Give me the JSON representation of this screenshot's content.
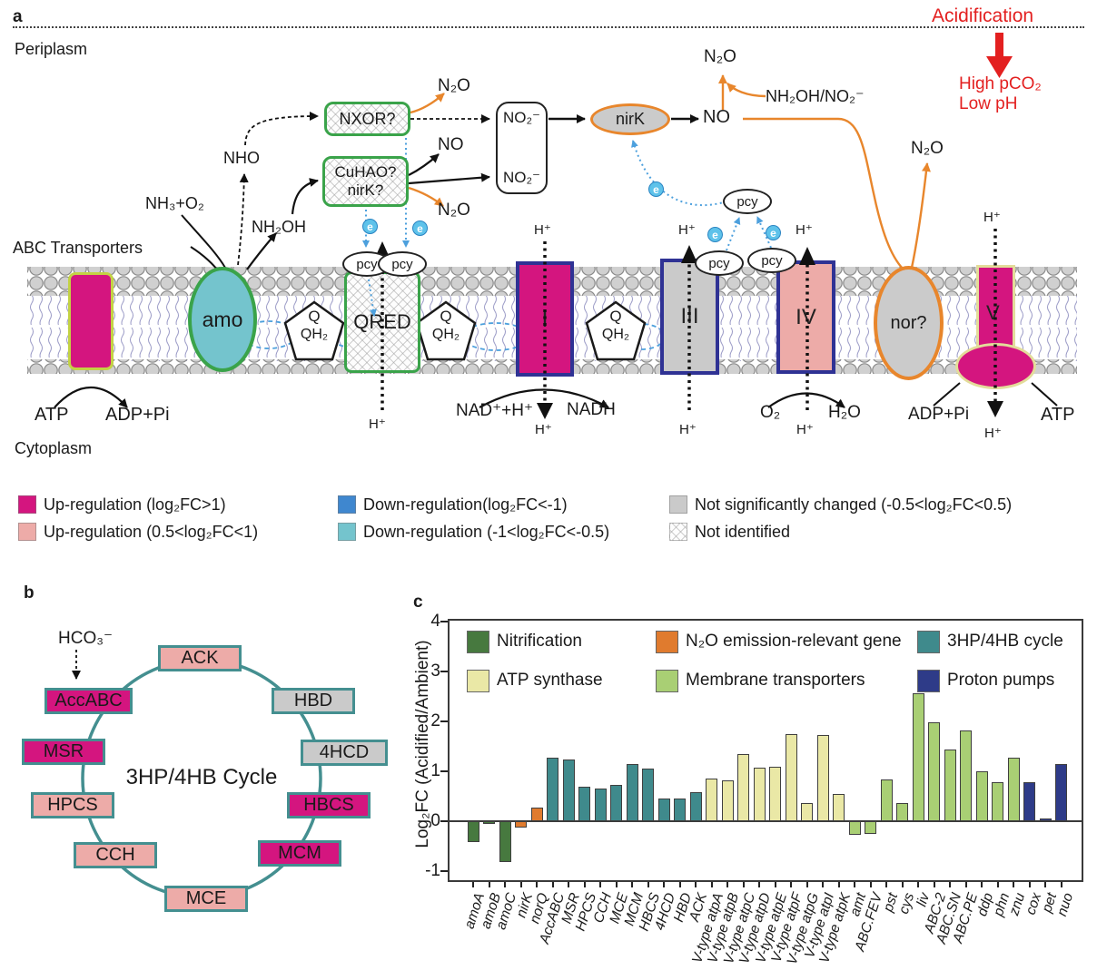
{
  "panel_a": {
    "label": "a",
    "periplasm": "Periplasm",
    "cytoplasm": "Cytoplasm",
    "abc_transporters": "ABC Transporters",
    "acidification": "Acidification",
    "high_pco2": "High pCO₂",
    "low_ph": "Low pH",
    "electron": "e",
    "molecules": {
      "nh3_o2": "NH₃+O₂",
      "nho": "NHO",
      "nh2oh": "NH₂OH",
      "n2o": "N₂O",
      "no": "NO",
      "no2": "NO₂⁻",
      "nh2oh_no2": "NH₂OH/NO₂⁻",
      "h_plus": "H⁺",
      "nad_h": "NAD⁺+H⁺",
      "nadh": "NADH",
      "o2": "O₂",
      "h2o": "H₂O",
      "atp": "ATP",
      "adp_pi": "ADP+Pi",
      "q": "Q",
      "qh2": "QH₂"
    },
    "proteins": {
      "amo": "amo",
      "qred": "QRED",
      "pcy": "pcy",
      "complex1": "I",
      "complex3": "III",
      "complex4": "IV",
      "nor": "nor?",
      "v": "V",
      "nirk": "nirK",
      "nxor": "NXOR?",
      "cuhao_line1": "CuHAO?",
      "cuhao_line2": "nirK?"
    },
    "legend": [
      {
        "swatch": "#d4157f",
        "label": "Up-regulation (log₂FC>1)"
      },
      {
        "swatch": "#edaba8",
        "label": "Up-regulation (0.5<log₂FC<1)"
      },
      {
        "swatch": "#3f87cf",
        "label": "Down-regulation(log₂FC<-1)"
      },
      {
        "swatch": "#74c4cd",
        "label": "Down-regulation (-1<log₂FC<-0.5)"
      },
      {
        "swatch": "#cacaca",
        "label": "Not significantly changed (-0.5<log₂FC<0.5)"
      },
      {
        "swatch": "hatch",
        "label": "Not identified"
      }
    ]
  },
  "panel_b": {
    "label": "b",
    "hco3": "HCO₃⁻",
    "center_label": "3HP/4HB Cycle",
    "nodes": [
      {
        "label": "ACK",
        "color": "#edaba8"
      },
      {
        "label": "HBD",
        "color": "#cacaca"
      },
      {
        "label": "4HCD",
        "color": "#cacaca"
      },
      {
        "label": "HBCS",
        "color": "#d4157f"
      },
      {
        "label": "MCM",
        "color": "#d4157f"
      },
      {
        "label": "MCE",
        "color": "#edaba8"
      },
      {
        "label": "CCH",
        "color": "#edaba8"
      },
      {
        "label": "HPCS",
        "color": "#edaba8"
      },
      {
        "label": "MSR",
        "color": "#d4157f"
      },
      {
        "label": "AccABC",
        "color": "#d4157f"
      }
    ]
  },
  "panel_c": {
    "label": "c"
  },
  "chart_data": {
    "type": "bar",
    "title": "",
    "xlabel": "",
    "ylabel": "Log₂FC (Acidified/Ambient)",
    "ylim": [
      -1.3,
      4.05
    ],
    "yticks": [
      4,
      3,
      2,
      1,
      0,
      -1
    ],
    "grid": false,
    "legend_position": "top-inside",
    "groups": {
      "nitrification": {
        "color": "#47793f",
        "label": "Nitrification"
      },
      "n2o": {
        "color": "#e07b2e",
        "label": "N₂O emission-relevant gene"
      },
      "hp4hb": {
        "color": "#3f8a8c",
        "label": "3HP/4HB cycle"
      },
      "atp": {
        "color": "#eae8a6",
        "label": "ATP synthase"
      },
      "membrane": {
        "color": "#a9cf74",
        "label": "Membrane transporters"
      },
      "proton": {
        "color": "#2e3b88",
        "label": "Proton pumps"
      }
    },
    "legend_order": [
      "nitrification",
      "n2o",
      "hp4hb",
      "atp",
      "membrane",
      "proton"
    ],
    "bars": [
      {
        "label": "amoA",
        "value": -0.42,
        "group": "nitrification"
      },
      {
        "label": "amoB",
        "value": -0.06,
        "group": "nitrification"
      },
      {
        "label": "amoC",
        "value": -0.82,
        "group": "nitrification"
      },
      {
        "label": "nirK",
        "value": -0.13,
        "group": "n2o"
      },
      {
        "label": "norQ",
        "value": 0.27,
        "group": "n2o"
      },
      {
        "label": "AccABC",
        "value": 1.27,
        "group": "hp4hb"
      },
      {
        "label": "MSR",
        "value": 1.23,
        "group": "hp4hb"
      },
      {
        "label": "HPCS",
        "value": 0.7,
        "group": "hp4hb"
      },
      {
        "label": "CCH",
        "value": 0.66,
        "group": "hp4hb"
      },
      {
        "label": "MCE",
        "value": 0.72,
        "group": "hp4hb"
      },
      {
        "label": "MCM",
        "value": 1.15,
        "group": "hp4hb"
      },
      {
        "label": "HBCS",
        "value": 1.05,
        "group": "hp4hb"
      },
      {
        "label": "4HCD",
        "value": 0.45,
        "group": "hp4hb"
      },
      {
        "label": "HBD",
        "value": 0.46,
        "group": "hp4hb"
      },
      {
        "label": "ACK",
        "value": 0.58,
        "group": "hp4hb"
      },
      {
        "label": "V-type atpA",
        "value": 0.86,
        "group": "atp"
      },
      {
        "label": "V-type atpB",
        "value": 0.82,
        "group": "atp"
      },
      {
        "label": "V-type atpC",
        "value": 1.35,
        "group": "atp"
      },
      {
        "label": "V-type atpD",
        "value": 1.08,
        "group": "atp"
      },
      {
        "label": "V-type atpE",
        "value": 1.09,
        "group": "atp"
      },
      {
        "label": "V-type atpF",
        "value": 1.75,
        "group": "atp"
      },
      {
        "label": "V-type atpG",
        "value": 0.37,
        "group": "atp"
      },
      {
        "label": "V-type atpI",
        "value": 1.73,
        "group": "atp"
      },
      {
        "label": "V-type atpK",
        "value": 0.54,
        "group": "atp"
      },
      {
        "label": "amt",
        "value": -0.28,
        "group": "membrane"
      },
      {
        "label": "ABC.FEV",
        "value": -0.25,
        "group": "membrane"
      },
      {
        "label": "pst",
        "value": 0.83,
        "group": "membrane"
      },
      {
        "label": "cys",
        "value": 0.36,
        "group": "membrane"
      },
      {
        "label": "liv",
        "value": 2.57,
        "group": "membrane"
      },
      {
        "label": "ABC-2",
        "value": 1.98,
        "group": "membrane"
      },
      {
        "label": "ABC.SN",
        "value": 1.44,
        "group": "membrane"
      },
      {
        "label": "ABC.PE",
        "value": 1.81,
        "group": "membrane"
      },
      {
        "label": "ddp",
        "value": 1.0,
        "group": "membrane"
      },
      {
        "label": "phn",
        "value": 0.79,
        "group": "membrane"
      },
      {
        "label": "znu",
        "value": 1.27,
        "group": "membrane"
      },
      {
        "label": "cox",
        "value": 0.79,
        "group": "proton"
      },
      {
        "label": "pet",
        "value": 0.05,
        "group": "proton"
      },
      {
        "label": "nuo",
        "value": 1.15,
        "group": "proton"
      }
    ]
  }
}
